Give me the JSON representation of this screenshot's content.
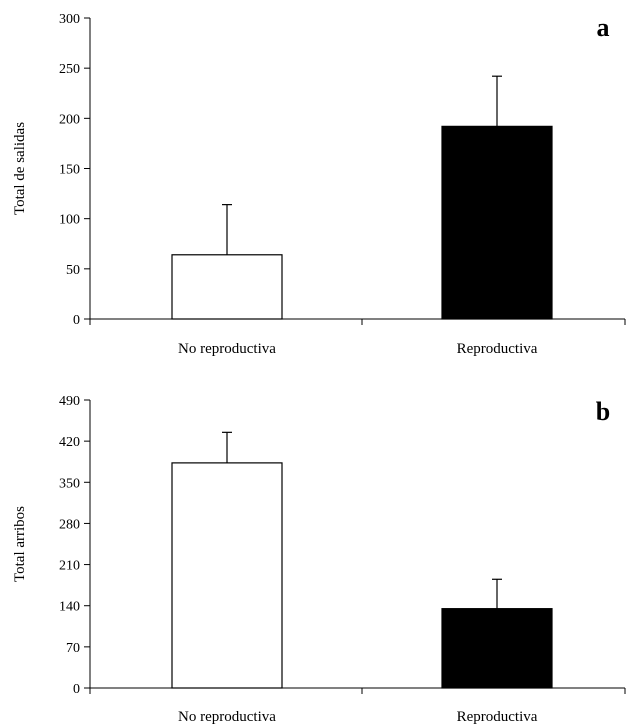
{
  "chart_data": [
    {
      "type": "bar",
      "panel_label": "a",
      "categories": [
        "No reproductiva",
        "Reproductiva"
      ],
      "values": [
        64,
        192
      ],
      "error_plus": [
        50,
        50
      ],
      "bar_colors": [
        "#ffffff",
        "#000000"
      ],
      "ylabel": "Total de salidas",
      "xlabel": "",
      "ylim": [
        0,
        300
      ],
      "yticks": [
        0,
        50,
        100,
        150,
        200,
        250,
        300
      ],
      "grid": false,
      "legend": "none"
    },
    {
      "type": "bar",
      "panel_label": "b",
      "categories": [
        "No reproductiva",
        "Reproductiva"
      ],
      "values": [
        383,
        135
      ],
      "error_plus": [
        52,
        50
      ],
      "bar_colors": [
        "#ffffff",
        "#000000"
      ],
      "ylabel": "Total arribos",
      "xlabel": "",
      "ylim": [
        0,
        490
      ],
      "yticks": [
        0,
        70,
        140,
        210,
        280,
        350,
        420,
        490
      ],
      "grid": false,
      "legend": "none"
    }
  ]
}
